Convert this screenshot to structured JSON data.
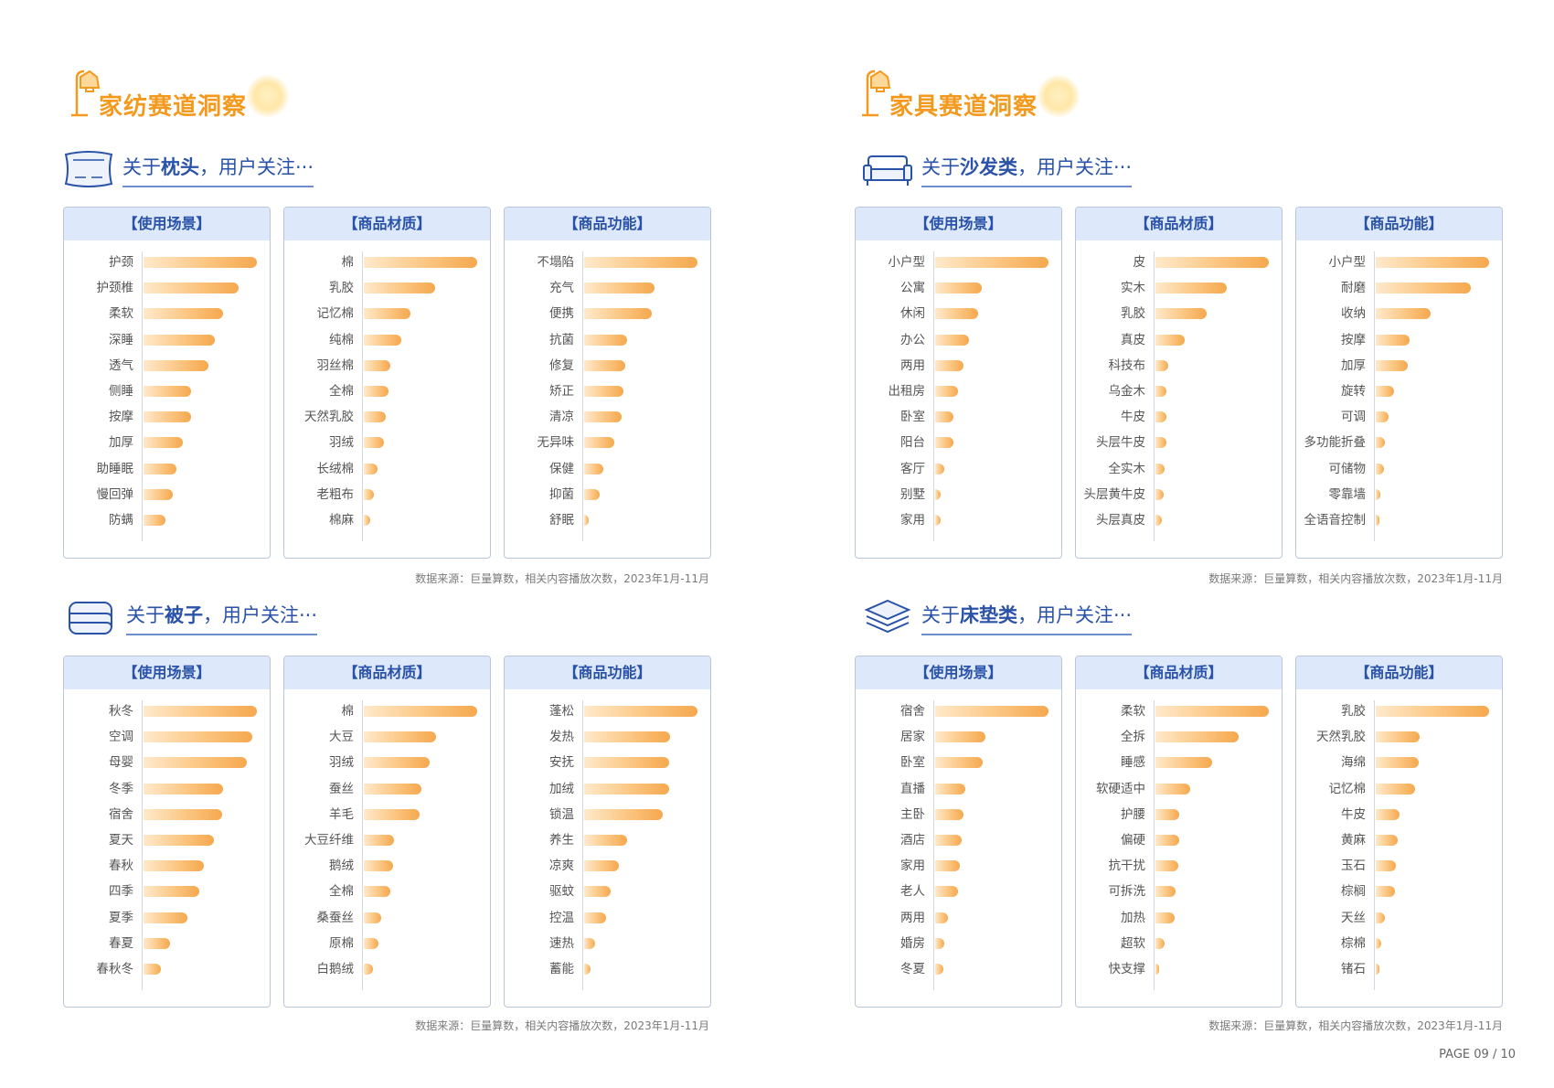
{
  "page_label": "PAGE 09 / 10",
  "colors": {
    "title_orange": "#f39a1e",
    "sub_blue": "#2a52a8",
    "header_bg": "#dde9fb",
    "bar_orange": "#f5a84e"
  },
  "sections": [
    {
      "title": "家纺赛道洞察",
      "subsections": [
        {
          "prefix": "关于",
          "topic": "枕头",
          "suffix": "，用户关注···",
          "icon": "pillow-icon",
          "source": "数据来源：巨量算数，相关内容播放次数，2023年1月-11月",
          "chart_data": [
            {
              "type": "bar",
              "title": "【使用场景】",
              "categories": [
                "护颈",
                "护颈椎",
                "柔软",
                "深睡",
                "透气",
                "侧睡",
                "按摩",
                "加厚",
                "助睡眠",
                "慢回弹",
                "防螨"
              ],
              "values": [
                100,
                84,
                70,
                63,
                57,
                42,
                42,
                35,
                29,
                26,
                19
              ]
            },
            {
              "type": "bar",
              "title": "【商品材质】",
              "categories": [
                "棉",
                "乳胶",
                "记忆棉",
                "纯棉",
                "羽丝棉",
                "全棉",
                "天然乳胶",
                "羽绒",
                "长绒棉",
                "老粗布",
                "棉麻"
              ],
              "values": [
                100,
                63,
                41,
                33,
                23,
                22,
                19,
                18,
                12,
                9,
                6
              ]
            },
            {
              "type": "bar",
              "title": "【商品功能】",
              "categories": [
                "不塌陷",
                "充气",
                "便携",
                "抗菌",
                "修复",
                "矫正",
                "清凉",
                "无异味",
                "保健",
                "抑菌",
                "舒眠"
              ],
              "values": [
                100,
                62,
                60,
                38,
                36,
                35,
                33,
                27,
                17,
                14,
                4
              ]
            }
          ]
        },
        {
          "prefix": "关于",
          "topic": "被子",
          "suffix": "，用户关注···",
          "icon": "quilt-icon",
          "source": "数据来源：巨量算数，相关内容播放次数，2023年1月-11月",
          "chart_data": [
            {
              "type": "bar",
              "title": "【使用场景】",
              "categories": [
                "秋冬",
                "空调",
                "母婴",
                "冬季",
                "宿舍",
                "夏天",
                "春秋",
                "四季",
                "夏季",
                "春夏",
                "春秋冬"
              ],
              "values": [
                100,
                96,
                91,
                70,
                69,
                62,
                53,
                49,
                39,
                23,
                15
              ]
            },
            {
              "type": "bar",
              "title": "【商品材质】",
              "categories": [
                "棉",
                "大豆",
                "羽绒",
                "蚕丝",
                "羊毛",
                "大豆纤维",
                "鹅绒",
                "全棉",
                "桑蚕丝",
                "原棉",
                "白鹅绒"
              ],
              "values": [
                100,
                64,
                58,
                51,
                49,
                27,
                26,
                23,
                15,
                13,
                8
              ]
            },
            {
              "type": "bar",
              "title": "【商品功能】",
              "categories": [
                "蓬松",
                "发热",
                "安抚",
                "加绒",
                "锁温",
                "养生",
                "凉爽",
                "驱蚊",
                "控温",
                "速热",
                "蓄能"
              ],
              "values": [
                100,
                76,
                75,
                75,
                69,
                38,
                31,
                23,
                19,
                10,
                6
              ]
            }
          ]
        }
      ]
    },
    {
      "title": "家具赛道洞察",
      "subsections": [
        {
          "prefix": "关于",
          "topic": "沙发类",
          "suffix": "，用户关注···",
          "icon": "sofa-icon",
          "source": "数据来源：巨量算数，相关内容播放次数，2023年1月-11月",
          "chart_data": [
            {
              "type": "bar",
              "title": "【使用场景】",
              "categories": [
                "小户型",
                "公寓",
                "休闲",
                "办公",
                "两用",
                "出租房",
                "卧室",
                "阳台",
                "客厅",
                "别墅",
                "家用"
              ],
              "values": [
                100,
                41,
                38,
                30,
                25,
                20,
                16,
                16,
                8,
                5,
                5
              ]
            },
            {
              "type": "bar",
              "title": "【商品材质】",
              "categories": [
                "皮",
                "实木",
                "乳胶",
                "真皮",
                "科技布",
                "乌金木",
                "牛皮",
                "头层牛皮",
                "全实木",
                "头层黄牛皮",
                "头层真皮"
              ],
              "values": [
                100,
                63,
                45,
                26,
                11,
                10,
                10,
                10,
                8,
                7,
                6
              ]
            },
            {
              "type": "bar",
              "title": "【商品功能】",
              "categories": [
                "小户型",
                "耐磨",
                "收纳",
                "按摩",
                "加厚",
                "旋转",
                "可调",
                "多功能折叠",
                "可储物",
                "零靠墙",
                "全语音控制"
              ],
              "values": [
                100,
                84,
                48,
                30,
                28,
                16,
                11,
                8,
                7,
                4,
                3
              ]
            }
          ]
        },
        {
          "prefix": "关于",
          "topic": "床垫类",
          "suffix": "，用户关注···",
          "icon": "mattress-icon",
          "source": "数据来源：巨量算数，相关内容播放次数，2023年1月-11月",
          "chart_data": [
            {
              "type": "bar",
              "title": "【使用场景】",
              "categories": [
                "宿舍",
                "居家",
                "卧室",
                "直播",
                "主卧",
                "酒店",
                "家用",
                "老人",
                "两用",
                "婚房",
                "冬夏"
              ],
              "values": [
                100,
                44,
                42,
                27,
                25,
                23,
                22,
                20,
                11,
                8,
                7
              ]
            },
            {
              "type": "bar",
              "title": "【商品材质】",
              "categories": [
                "柔软",
                "全拆",
                "睡感",
                "软硬适中",
                "护腰",
                "偏硬",
                "抗干扰",
                "可拆洗",
                "加热",
                "超软",
                "快支撑"
              ],
              "values": [
                100,
                73,
                50,
                31,
                21,
                21,
                20,
                18,
                17,
                8,
                3
              ]
            },
            {
              "type": "bar",
              "title": "【商品功能】",
              "categories": [
                "乳胶",
                "天然乳胶",
                "海绵",
                "记忆棉",
                "牛皮",
                "黄麻",
                "玉石",
                "棕榈",
                "天丝",
                "棕棉",
                "锗石"
              ],
              "values": [
                100,
                39,
                38,
                35,
                21,
                19,
                18,
                17,
                8,
                5,
                3
              ]
            }
          ]
        }
      ]
    }
  ]
}
